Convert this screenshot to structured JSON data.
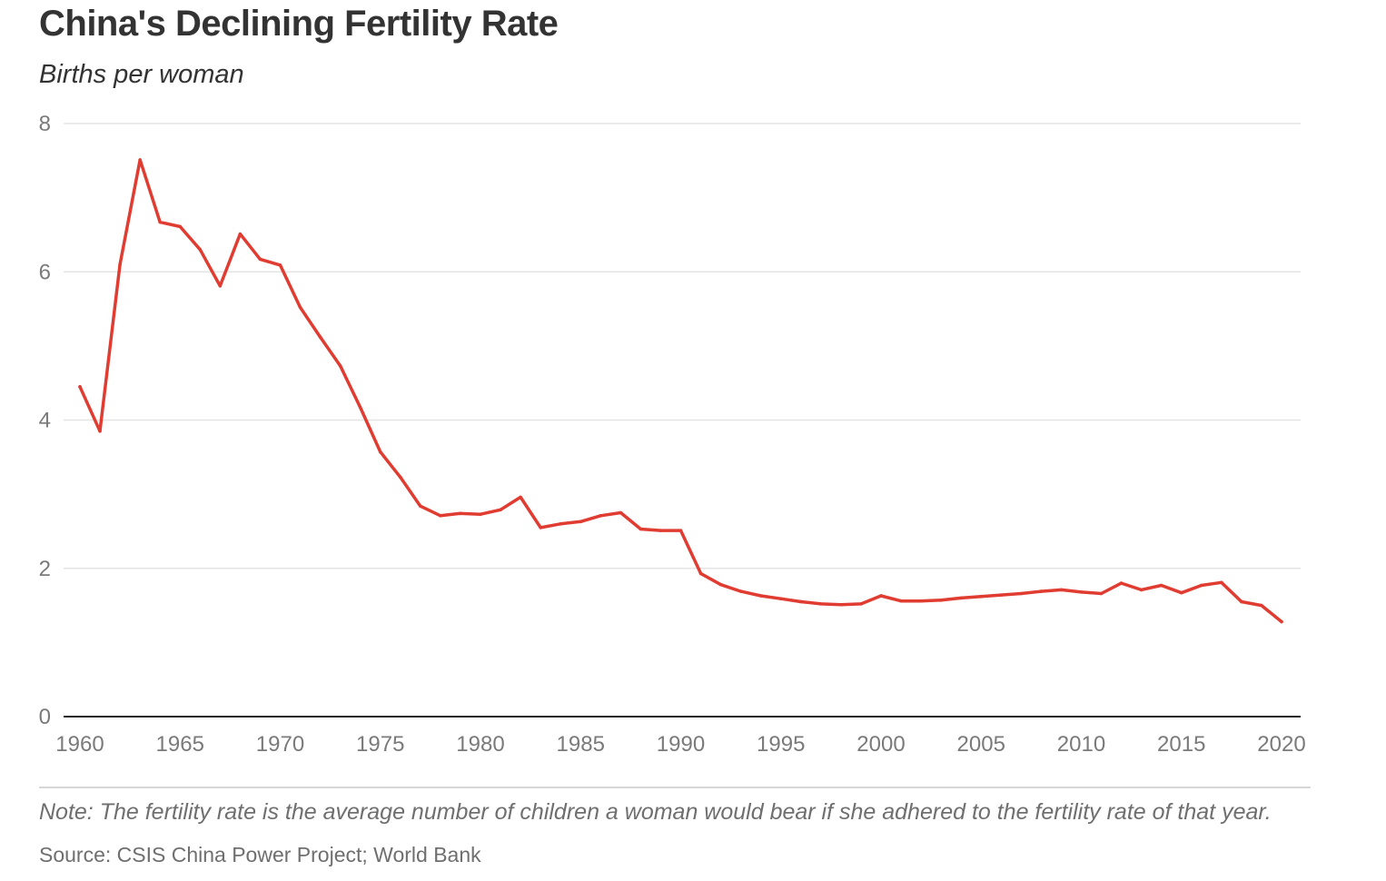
{
  "header": {
    "title": "China's Declining Fertility Rate",
    "subtitle": "Births per woman"
  },
  "footer": {
    "note": "Note: The fertility rate is the average number of children a woman would bear if she adhered to the fertility rate of that year.",
    "source": "Source: CSIS China Power Project; World Bank"
  },
  "colors": {
    "line": "#e03c31",
    "grid": "#e4e4e4",
    "axis": "#222222",
    "tick_text": "#7a7a7a"
  },
  "chart_data": {
    "type": "line",
    "title": "China's Declining Fertility Rate",
    "subtitle": "Births per woman",
    "xlabel": "",
    "ylabel": "",
    "xlim": [
      1960,
      2020
    ],
    "ylim": [
      0,
      8
    ],
    "x_ticks": [
      "1960",
      "1965",
      "1970",
      "1975",
      "1980",
      "1985",
      "1990",
      "1995",
      "2000",
      "2005",
      "2010",
      "2015",
      "2020"
    ],
    "y_ticks": [
      "0",
      "2",
      "4",
      "6",
      "8"
    ],
    "grid": "horizontal",
    "x": [
      1960,
      1961,
      1962,
      1963,
      1964,
      1965,
      1966,
      1967,
      1968,
      1969,
      1970,
      1971,
      1972,
      1973,
      1974,
      1975,
      1976,
      1977,
      1978,
      1979,
      1980,
      1981,
      1982,
      1983,
      1984,
      1985,
      1986,
      1987,
      1988,
      1989,
      1990,
      1991,
      1992,
      1993,
      1994,
      1995,
      1996,
      1997,
      1998,
      1999,
      2000,
      2001,
      2002,
      2003,
      2004,
      2005,
      2006,
      2007,
      2008,
      2009,
      2010,
      2011,
      2012,
      2013,
      2014,
      2015,
      2016,
      2017,
      2018,
      2019,
      2020
    ],
    "series": [
      {
        "values": [
          4.45,
          3.85,
          6.1,
          7.51,
          6.67,
          6.61,
          6.3,
          5.81,
          6.51,
          6.17,
          6.09,
          5.52,
          5.12,
          4.73,
          4.17,
          3.57,
          3.23,
          2.84,
          2.71,
          2.74,
          2.73,
          2.79,
          2.96,
          2.55,
          2.6,
          2.63,
          2.71,
          2.75,
          2.53,
          2.51,
          2.51,
          1.93,
          1.78,
          1.69,
          1.63,
          1.59,
          1.55,
          1.52,
          1.51,
          1.52,
          1.63,
          1.56,
          1.56,
          1.57,
          1.6,
          1.62,
          1.64,
          1.66,
          1.69,
          1.71,
          1.68,
          1.66,
          1.8,
          1.71,
          1.77,
          1.67,
          1.77,
          1.81,
          1.55,
          1.5,
          1.28
        ]
      }
    ]
  }
}
